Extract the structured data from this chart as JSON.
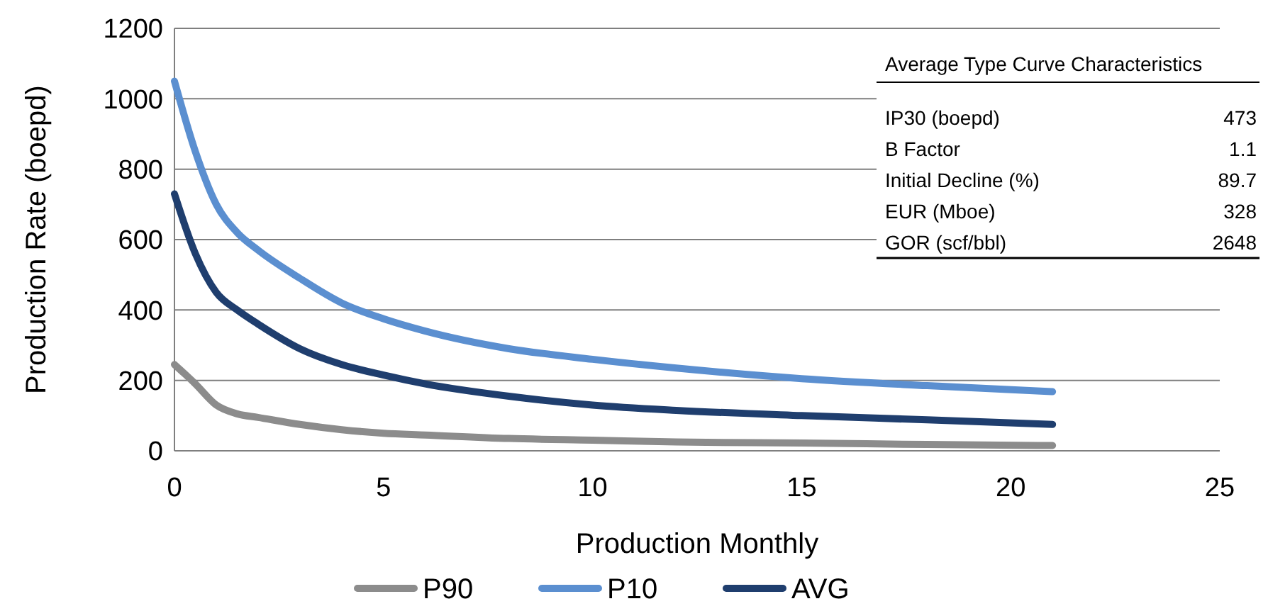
{
  "chart_data": {
    "type": "line",
    "xlabel": "Production Monthly",
    "ylabel": "Production Rate (boepd)",
    "x": [
      0,
      0.5,
      1,
      1.5,
      2,
      3,
      4,
      5,
      6,
      8,
      10,
      12,
      15,
      18,
      21
    ],
    "series": [
      {
        "name": "P90",
        "color": "#8c8c8c",
        "values": [
          245,
          190,
          130,
          105,
          95,
          75,
          60,
          50,
          45,
          35,
          30,
          25,
          22,
          18,
          15
        ]
      },
      {
        "name": "P10",
        "color": "#5b8fd0",
        "values": [
          1050,
          850,
          700,
          620,
          570,
          490,
          420,
          375,
          340,
          290,
          260,
          235,
          205,
          185,
          168
        ]
      },
      {
        "name": "AVG",
        "color": "#1f3e6e",
        "values": [
          730,
          560,
          450,
          400,
          360,
          290,
          245,
          215,
          190,
          155,
          130,
          115,
          100,
          88,
          75
        ]
      }
    ],
    "xlim": [
      0,
      25
    ],
    "xticks": [
      0,
      5,
      10,
      15,
      20,
      25
    ],
    "ylim": [
      0,
      1200
    ],
    "yticks": [
      0,
      200,
      400,
      600,
      800,
      1000,
      1200
    ],
    "grid": "y",
    "legend": "bottom",
    "marker": "none",
    "line_style": "solid",
    "annotations": [
      "Average Type Curve Characteristics",
      "IP30 (boepd)",
      "473",
      "B Factor",
      "1.1",
      "Initial Decline (%)",
      "89.7",
      "EUR (Mboe)",
      "328",
      "GOR (scf/bbl)",
      "2648"
    ]
  }
}
